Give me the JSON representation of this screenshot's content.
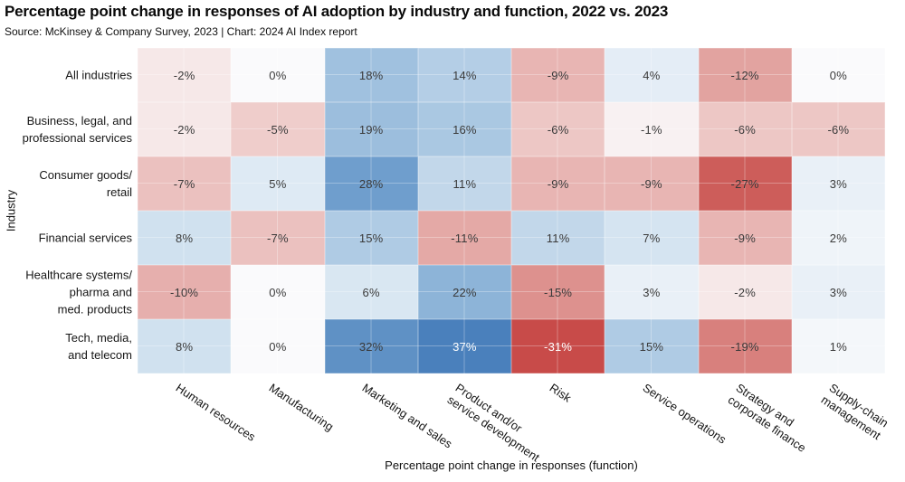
{
  "header": {
    "title": "Percentage point change in responses of AI adoption by industry and function, 2022 vs. 2023",
    "source": "Source: McKinsey & Company Survey, 2023 | Chart: 2024 AI Index report"
  },
  "chart_data": {
    "type": "heatmap",
    "title": "Percentage point change in responses of AI adoption by industry and function, 2022 vs. 2023",
    "xlabel": "Percentage point change in responses (function)",
    "ylabel": "Industry",
    "value_suffix": "%",
    "categories_x": [
      "Human resources",
      "Manufacturing",
      "Marketing and sales",
      "Product and/or service development",
      "Risk",
      "Service operations",
      "Strategy and corporate finance",
      "Supply-chain management"
    ],
    "categories_x_lines": [
      [
        "Human resources"
      ],
      [
        "Manufacturing"
      ],
      [
        "Marketing and sales"
      ],
      [
        "Product and/or",
        "service development"
      ],
      [
        "Risk"
      ],
      [
        "Service operations"
      ],
      [
        "Strategy and",
        "corporate finance"
      ],
      [
        "Supply-chain",
        "management"
      ]
    ],
    "categories_y": [
      "All industries",
      "Business, legal, and professional services",
      "Consumer goods/retail",
      "Financial services",
      "Healthcare systems/pharma and med. products",
      "Tech, media, and telecom"
    ],
    "categories_y_lines": [
      [
        "All industries"
      ],
      [
        "Business, legal, and",
        "professional services"
      ],
      [
        "Consumer goods/",
        "retail"
      ],
      [
        "Financial services"
      ],
      [
        "Healthcare systems/",
        "pharma and",
        "med. products"
      ],
      [
        "Tech, media,",
        "and telecom"
      ]
    ],
    "values": [
      [
        -2,
        0,
        18,
        14,
        -9,
        4,
        -12,
        0
      ],
      [
        -2,
        -5,
        19,
        16,
        -6,
        -1,
        -6,
        -6
      ],
      [
        -7,
        5,
        28,
        11,
        -9,
        -9,
        -27,
        3
      ],
      [
        8,
        -7,
        15,
        -11,
        11,
        7,
        -9,
        2
      ],
      [
        -10,
        0,
        6,
        22,
        -15,
        3,
        -2,
        3
      ],
      [
        8,
        0,
        32,
        37,
        -31,
        15,
        -19,
        1
      ]
    ],
    "colorscale": [
      [
        -31,
        "#c84b49"
      ],
      [
        -15,
        "#dd918e"
      ],
      [
        -5,
        "#efcdcb"
      ],
      [
        0,
        "#fafafc"
      ],
      [
        5,
        "#deeaf4"
      ],
      [
        15,
        "#afcbe4"
      ],
      [
        22,
        "#8db4d8"
      ],
      [
        28,
        "#6f9ecd"
      ],
      [
        37,
        "#4a80bc"
      ]
    ],
    "text_colors": {
      "dark": "#3a3a3a",
      "light": "#ffffff"
    },
    "grid": "thin white separators between cells",
    "legend": "none"
  }
}
